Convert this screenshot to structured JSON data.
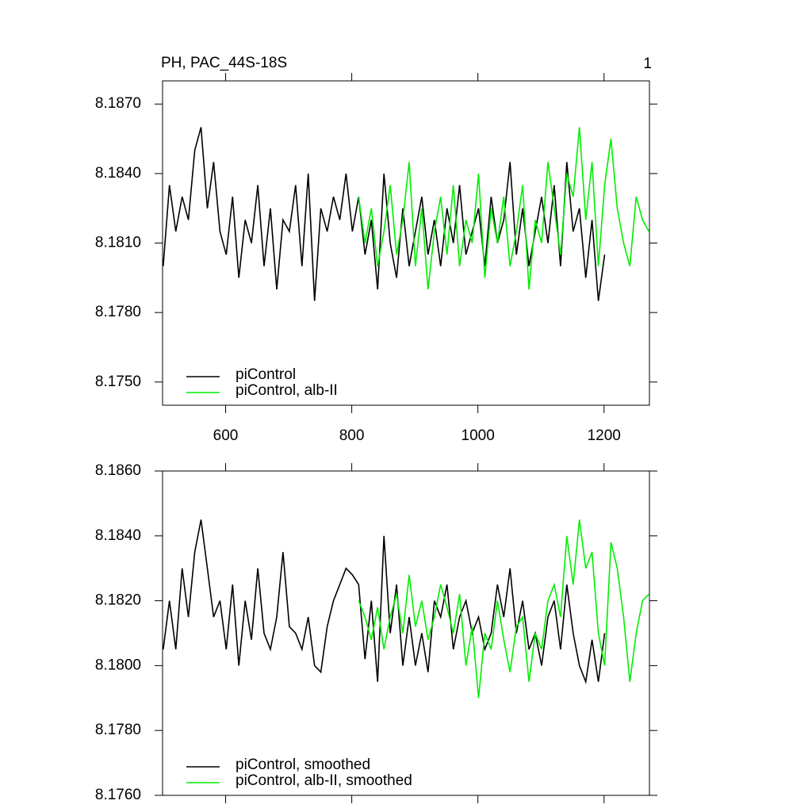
{
  "chart_data": [
    {
      "type": "line",
      "title": "PH, PAC_44S-18S",
      "corner_label": "1",
      "xlim": [
        500,
        1272
      ],
      "xticks": [
        600,
        800,
        1000,
        1200
      ],
      "show_xtick_labels": true,
      "ylim": [
        8.174,
        8.188
      ],
      "yticks": [
        {
          "value": 8.175,
          "label": "8.1750"
        },
        {
          "value": 8.178,
          "label": "8.1780"
        },
        {
          "value": 8.181,
          "label": "8.1810"
        },
        {
          "value": 8.184,
          "label": "8.1840"
        },
        {
          "value": 8.187,
          "label": "8.1870"
        }
      ],
      "legend": "lower left",
      "series": [
        {
          "name": "piControl",
          "color": "#000000",
          "x": [
            501,
            511,
            521,
            531,
            541,
            551,
            561,
            571,
            581,
            591,
            601,
            611,
            621,
            631,
            641,
            651,
            661,
            671,
            681,
            691,
            701,
            711,
            721,
            731,
            741,
            751,
            761,
            771,
            781,
            791,
            801,
            811,
            821,
            831,
            841,
            851,
            861,
            871,
            881,
            891,
            901,
            911,
            921,
            931,
            941,
            951,
            961,
            971,
            981,
            991,
            1001,
            1011,
            1021,
            1031,
            1041,
            1051,
            1061,
            1071,
            1081,
            1091,
            1101,
            1111,
            1121,
            1131,
            1141,
            1151,
            1161,
            1171,
            1181,
            1191,
            1201
          ],
          "values": [
            8.18,
            8.1835,
            8.1815,
            8.183,
            8.182,
            8.185,
            8.186,
            8.1825,
            8.1845,
            8.1815,
            8.1805,
            8.183,
            8.1795,
            8.182,
            8.181,
            8.1835,
            8.18,
            8.1825,
            8.179,
            8.182,
            8.1815,
            8.1835,
            8.18,
            8.184,
            8.1785,
            8.1825,
            8.1815,
            8.183,
            8.182,
            8.184,
            8.1815,
            8.183,
            8.1805,
            8.182,
            8.179,
            8.184,
            8.181,
            8.1795,
            8.1825,
            8.18,
            8.1815,
            8.183,
            8.1805,
            8.182,
            8.18,
            8.1825,
            8.181,
            8.1835,
            8.1805,
            8.1815,
            8.1825,
            8.18,
            8.183,
            8.181,
            8.182,
            8.1845,
            8.1805,
            8.1825,
            8.18,
            8.1815,
            8.183,
            8.181,
            8.1835,
            8.18,
            8.1845,
            8.1815,
            8.1825,
            8.1795,
            8.182,
            8.1785,
            8.1805
          ]
        },
        {
          "name": "piControl, alb-II",
          "color": "#00ee00",
          "x": [
            811,
            821,
            831,
            841,
            851,
            861,
            871,
            881,
            891,
            901,
            911,
            921,
            931,
            941,
            951,
            961,
            971,
            981,
            991,
            1001,
            1011,
            1021,
            1031,
            1041,
            1051,
            1061,
            1071,
            1081,
            1091,
            1101,
            1111,
            1121,
            1131,
            1141,
            1151,
            1161,
            1171,
            1181,
            1191,
            1201,
            1211,
            1221,
            1231,
            1241,
            1251,
            1261,
            1271
          ],
          "values": [
            8.183,
            8.181,
            8.1825,
            8.18,
            8.1815,
            8.1835,
            8.1805,
            8.182,
            8.1845,
            8.18,
            8.1825,
            8.179,
            8.1815,
            8.183,
            8.1805,
            8.1835,
            8.18,
            8.182,
            8.181,
            8.184,
            8.1795,
            8.1825,
            8.181,
            8.183,
            8.18,
            8.1815,
            8.1835,
            8.179,
            8.182,
            8.181,
            8.1845,
            8.1825,
            8.1805,
            8.184,
            8.183,
            8.186,
            8.182,
            8.1845,
            8.18,
            8.1835,
            8.1855,
            8.1825,
            8.181,
            8.18,
            8.183,
            8.182,
            8.1815
          ]
        }
      ]
    },
    {
      "type": "line",
      "xlim": [
        500,
        1272
      ],
      "xticks": [
        600,
        800,
        1000,
        1200
      ],
      "show_xtick_labels": false,
      "ylim": [
        8.176,
        8.186
      ],
      "yticks": [
        {
          "value": 8.176,
          "label": "8.1760"
        },
        {
          "value": 8.178,
          "label": "8.1780"
        },
        {
          "value": 8.18,
          "label": "8.1800"
        },
        {
          "value": 8.182,
          "label": "8.1820"
        },
        {
          "value": 8.184,
          "label": "8.1840"
        },
        {
          "value": 8.186,
          "label": "8.1860"
        }
      ],
      "legend": "lower left",
      "series": [
        {
          "name": "piControl, smoothed",
          "color": "#000000",
          "x": [
            501,
            511,
            521,
            531,
            541,
            551,
            561,
            571,
            581,
            591,
            601,
            611,
            621,
            631,
            641,
            651,
            661,
            671,
            681,
            691,
            701,
            711,
            721,
            731,
            741,
            751,
            761,
            771,
            781,
            791,
            801,
            811,
            821,
            831,
            841,
            851,
            861,
            871,
            881,
            891,
            901,
            911,
            921,
            931,
            941,
            951,
            961,
            971,
            981,
            991,
            1001,
            1011,
            1021,
            1031,
            1041,
            1051,
            1061,
            1071,
            1081,
            1091,
            1101,
            1111,
            1121,
            1131,
            1141,
            1151,
            1161,
            1171,
            1181,
            1191,
            1201
          ],
          "values": [
            8.1805,
            8.182,
            8.1805,
            8.183,
            8.1815,
            8.1835,
            8.1845,
            8.183,
            8.1815,
            8.182,
            8.1805,
            8.1825,
            8.18,
            8.182,
            8.1808,
            8.183,
            8.181,
            8.1805,
            8.1815,
            8.1835,
            8.1812,
            8.181,
            8.1805,
            8.1815,
            8.18,
            8.1798,
            8.1812,
            8.182,
            8.1825,
            8.183,
            8.1828,
            8.1825,
            8.1802,
            8.182,
            8.1795,
            8.184,
            8.181,
            8.1825,
            8.18,
            8.1815,
            8.18,
            8.181,
            8.1798,
            8.182,
            8.1815,
            8.1825,
            8.1805,
            8.1815,
            8.182,
            8.181,
            8.1815,
            8.1805,
            8.181,
            8.1825,
            8.1815,
            8.183,
            8.181,
            8.182,
            8.1805,
            8.181,
            8.18,
            8.1815,
            8.182,
            8.1805,
            8.1825,
            8.181,
            8.18,
            8.1795,
            8.1808,
            8.1795,
            8.181
          ]
        },
        {
          "name": "piControl, alb-II, smoothed",
          "color": "#00ee00",
          "x": [
            811,
            821,
            831,
            841,
            851,
            861,
            871,
            881,
            891,
            901,
            911,
            921,
            931,
            941,
            951,
            961,
            971,
            981,
            991,
            1001,
            1011,
            1021,
            1031,
            1041,
            1051,
            1061,
            1071,
            1081,
            1091,
            1101,
            1111,
            1121,
            1131,
            1141,
            1151,
            1161,
            1171,
            1181,
            1191,
            1201,
            1211,
            1221,
            1231,
            1241,
            1251,
            1261,
            1271
          ],
          "values": [
            8.182,
            8.1815,
            8.1808,
            8.1818,
            8.1805,
            8.1815,
            8.1822,
            8.181,
            8.1828,
            8.1812,
            8.182,
            8.1808,
            8.1815,
            8.1825,
            8.1818,
            8.181,
            8.1822,
            8.18,
            8.1812,
            8.179,
            8.181,
            8.1805,
            8.182,
            8.1808,
            8.1798,
            8.1812,
            8.1815,
            8.1795,
            8.181,
            8.1805,
            8.182,
            8.1825,
            8.1815,
            8.184,
            8.1825,
            8.1845,
            8.183,
            8.1835,
            8.181,
            8.18,
            8.1838,
            8.183,
            8.1815,
            8.1795,
            8.181,
            8.182,
            8.1822
          ]
        }
      ]
    }
  ]
}
